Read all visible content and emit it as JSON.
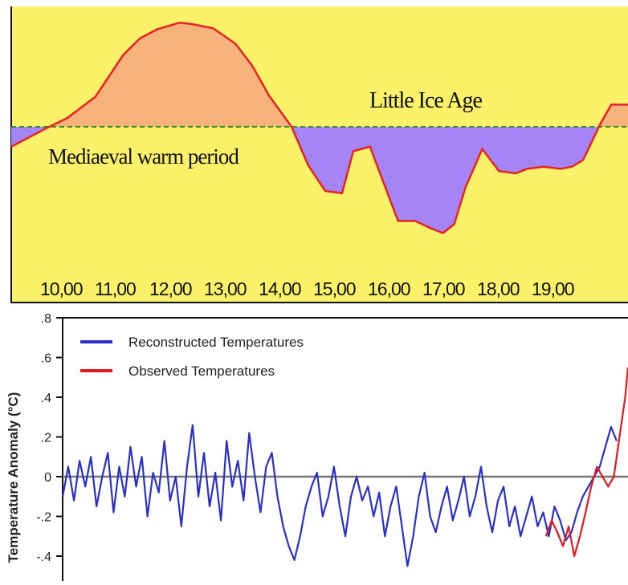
{
  "chart_data": [
    {
      "type": "area",
      "title": "",
      "xlabel": "",
      "ylabel": "",
      "categories": [
        "10,00",
        "11,00",
        "12,00",
        "13,00",
        "14,00",
        "15,00",
        "16,00",
        "17,00",
        "18,00",
        "19,00"
      ],
      "annotations": {
        "warm": "Mediaeval warm period",
        "cold": "Little Ice Age"
      },
      "baseline": 0,
      "xlim": [
        900,
        2000
      ],
      "ylim": [
        -1.0,
        1.0
      ],
      "series": [
        {
          "x": [
            900,
            960,
            1000,
            1050,
            1100,
            1130,
            1160,
            1200,
            1220,
            1260,
            1300,
            1330,
            1360,
            1400,
            1430,
            1460,
            1490,
            1510,
            1540,
            1560,
            1590,
            1620,
            1650,
            1670,
            1690,
            1710,
            1740,
            1770,
            1800,
            1820,
            1850,
            1880,
            1900,
            1920,
            1950,
            1970,
            2000
          ],
          "values": [
            -0.18,
            -0.02,
            0.08,
            0.27,
            0.65,
            0.8,
            0.88,
            0.94,
            0.93,
            0.89,
            0.75,
            0.55,
            0.28,
            0.0,
            -0.35,
            -0.58,
            -0.6,
            -0.22,
            -0.18,
            -0.45,
            -0.85,
            -0.85,
            -0.92,
            -0.96,
            -0.88,
            -0.55,
            -0.2,
            -0.4,
            -0.42,
            -0.38,
            -0.36,
            -0.38,
            -0.36,
            -0.3,
            0.02,
            0.2,
            0.2
          ]
        }
      ],
      "colors": {
        "background": "#FCF26A",
        "warm_fill": "#F7B37A",
        "cold_fill": "#A585F5",
        "curve": "#E62222",
        "baseline": "#2E8B2E"
      }
    },
    {
      "type": "line",
      "title": "",
      "xlabel": "",
      "ylabel": "Temperature Anomaly (°C)",
      "yticks": [
        ".8",
        ".6",
        ".4",
        ".2",
        "0",
        "-.2",
        "-.4"
      ],
      "ylim": [
        -0.45,
        0.8
      ],
      "xlim": [
        1000,
        2000
      ],
      "legend": "top-left",
      "series": [
        {
          "name": "Reconstructed Temperatures",
          "color": "#2A2FC9",
          "x": [
            1000,
            1010,
            1020,
            1030,
            1040,
            1050,
            1060,
            1070,
            1080,
            1090,
            1100,
            1110,
            1120,
            1130,
            1140,
            1150,
            1160,
            1170,
            1180,
            1190,
            1200,
            1210,
            1220,
            1230,
            1240,
            1250,
            1260,
            1270,
            1280,
            1290,
            1300,
            1310,
            1320,
            1330,
            1340,
            1350,
            1360,
            1370,
            1380,
            1390,
            1400,
            1410,
            1420,
            1430,
            1440,
            1450,
            1460,
            1470,
            1480,
            1490,
            1500,
            1510,
            1520,
            1530,
            1540,
            1550,
            1560,
            1570,
            1580,
            1590,
            1600,
            1610,
            1620,
            1630,
            1640,
            1650,
            1660,
            1670,
            1680,
            1690,
            1700,
            1710,
            1720,
            1730,
            1740,
            1750,
            1760,
            1770,
            1780,
            1790,
            1800,
            1810,
            1820,
            1830,
            1840,
            1850,
            1860,
            1870,
            1880,
            1890,
            1900,
            1910,
            1920,
            1930,
            1940,
            1950,
            1960,
            1970,
            1980
          ],
          "values": [
            -0.1,
            0.05,
            -0.12,
            0.08,
            -0.05,
            0.1,
            -0.15,
            0.0,
            0.12,
            -0.18,
            0.05,
            -0.1,
            0.15,
            -0.05,
            0.1,
            -0.2,
            0.02,
            -0.08,
            0.18,
            -0.12,
            0.0,
            -0.25,
            0.05,
            0.26,
            -0.1,
            0.12,
            -0.15,
            0.02,
            -0.22,
            0.18,
            -0.05,
            0.08,
            -0.12,
            0.22,
            0.0,
            -0.18,
            0.05,
            0.12,
            -0.1,
            -0.25,
            -0.35,
            -0.42,
            -0.3,
            -0.15,
            -0.05,
            0.02,
            -0.2,
            -0.1,
            0.05,
            -0.15,
            -0.3,
            -0.1,
            0.0,
            -0.12,
            -0.05,
            -0.2,
            -0.08,
            -0.3,
            -0.15,
            -0.05,
            -0.25,
            -0.45,
            -0.3,
            -0.1,
            0.02,
            -0.2,
            -0.28,
            -0.15,
            -0.05,
            -0.22,
            -0.12,
            0.0,
            -0.2,
            -0.1,
            0.05,
            -0.15,
            -0.28,
            -0.12,
            -0.05,
            -0.25,
            -0.15,
            -0.3,
            -0.2,
            -0.1,
            -0.25,
            -0.18,
            -0.3,
            -0.15,
            -0.22,
            -0.32,
            -0.28,
            -0.18,
            -0.1,
            -0.05,
            0.0,
            0.05,
            0.15,
            0.25,
            0.18
          ]
        },
        {
          "name": "Observed Temperatures",
          "color": "#E01B1B",
          "x": [
            1855,
            1865,
            1875,
            1885,
            1895,
            1905,
            1915,
            1925,
            1935,
            1945,
            1955,
            1965,
            1975,
            1985,
            1995,
            2000
          ],
          "values": [
            -0.3,
            -0.22,
            -0.28,
            -0.35,
            -0.25,
            -0.4,
            -0.3,
            -0.18,
            -0.05,
            0.05,
            0.0,
            -0.05,
            0.0,
            0.2,
            0.4,
            0.55
          ]
        }
      ]
    }
  ]
}
